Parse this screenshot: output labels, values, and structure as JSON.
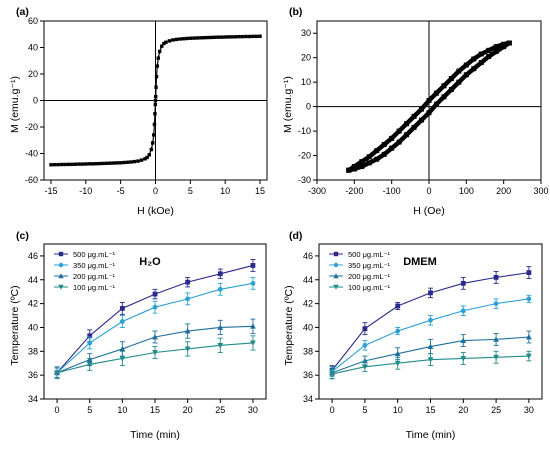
{
  "panels": [
    {
      "label": "(a)",
      "chart_data": {
        "type": "scatter",
        "xlabel": "H (kOe)",
        "ylabel": "M (emu.g⁻¹)",
        "xlim": [
          -16,
          16
        ],
        "ylim": [
          -60,
          60
        ],
        "xticks": [
          -15,
          -10,
          -5,
          0,
          5,
          10,
          15
        ],
        "yticks": [
          -60,
          -40,
          -20,
          0,
          20,
          40,
          60
        ],
        "zero_lines": true,
        "series": [
          {
            "color": "#000000",
            "marker": "square",
            "line": true,
            "x": [
              -15,
              -14.5,
              -14,
              -13.5,
              -13,
              -12.5,
              -12,
              -11.5,
              -11,
              -10.5,
              -10,
              -9.5,
              -9,
              -8.5,
              -8,
              -7.5,
              -7,
              -6.5,
              -6,
              -5.5,
              -5,
              -4.5,
              -4,
              -3.5,
              -3,
              -2.5,
              -2,
              -1.5,
              -1.2,
              -0.9,
              -0.6,
              -0.4,
              -0.25,
              -0.15,
              -0.08,
              -0.03,
              0,
              0.03,
              0.08,
              0.15,
              0.25,
              0.4,
              0.6,
              0.9,
              1.2,
              1.5,
              2,
              2.5,
              3,
              3.5,
              4,
              4.5,
              5,
              5.5,
              6,
              6.5,
              7,
              7.5,
              8,
              8.5,
              9,
              9.5,
              10,
              10.5,
              11,
              11.5,
              12,
              12.5,
              13,
              13.5,
              14,
              14.5,
              15
            ],
            "y": [
              -48.5,
              -48.4,
              -48.4,
              -48.3,
              -48.3,
              -48.2,
              -48.2,
              -48.1,
              -48,
              -48,
              -47.9,
              -47.8,
              -47.8,
              -47.7,
              -47.6,
              -47.5,
              -47.4,
              -47.3,
              -47.2,
              -47.1,
              -47,
              -46.8,
              -46.6,
              -46.4,
              -46.1,
              -45.7,
              -45,
              -44,
              -43,
              -41,
              -37,
              -32,
              -26,
              -18,
              -10,
              -3,
              0,
              3,
              10,
              18,
              26,
              32,
              37,
              41,
              43,
              44,
              45,
              45.7,
              46.1,
              46.4,
              46.6,
              46.8,
              47,
              47.1,
              47.2,
              47.3,
              47.4,
              47.5,
              47.6,
              47.7,
              47.8,
              47.8,
              47.9,
              48,
              48,
              48.1,
              48.2,
              48.2,
              48.3,
              48.3,
              48.4,
              48.4,
              48.5
            ]
          }
        ]
      }
    },
    {
      "label": "(b)",
      "chart_data": {
        "type": "line",
        "xlabel": "H (Oe)",
        "ylabel": "M (emu.g⁻¹)",
        "xlim": [
          -300,
          300
        ],
        "ylim": [
          -30,
          35
        ],
        "xticks": [
          -300,
          -200,
          -100,
          0,
          100,
          200,
          300
        ],
        "yticks": [
          -30,
          -20,
          -10,
          0,
          10,
          20,
          30
        ],
        "zero_lines": true,
        "series": [
          {
            "name": "",
            "color": "#000000",
            "dense_markers": true,
            "x": [
              215,
              200,
              180,
              160,
              140,
              120,
              100,
              80,
              60,
              40,
              20,
              0,
              -20,
              -40,
              -60,
              -80,
              -100,
              -120,
              -140,
              -160,
              -180,
              -200,
              -215
            ],
            "y": [
              26,
              25.5,
              24.5,
              23,
              21.5,
              19.5,
              17,
              14.5,
              11.5,
              8.5,
              5.5,
              2.5,
              -1,
              -4,
              -7,
              -10,
              -13,
              -15.5,
              -18,
              -20.5,
              -22.5,
              -24.5,
              -26
            ]
          },
          {
            "name": "",
            "color": "#000000",
            "dense_markers": true,
            "x": [
              -215,
              -200,
              -180,
              -160,
              -140,
              -120,
              -100,
              -80,
              -60,
              -40,
              -20,
              0,
              20,
              40,
              60,
              80,
              100,
              120,
              140,
              160,
              180,
              200,
              215
            ],
            "y": [
              -26,
              -25.5,
              -24.5,
              -23,
              -21.5,
              -19.5,
              -17,
              -14.5,
              -11.5,
              -8.5,
              -5.5,
              -2.5,
              1,
              4,
              7,
              10,
              13,
              15.5,
              18,
              20.5,
              22.5,
              24.5,
              26
            ]
          }
        ]
      }
    },
    {
      "label": "(c)",
      "medium": "H₂O",
      "chart_data": {
        "type": "line",
        "xlabel": "Time (min)",
        "ylabel": "Temperature (ºC)",
        "xlim": [
          -2,
          32
        ],
        "ylim": [
          34,
          47
        ],
        "xticks": [
          0,
          5,
          10,
          15,
          20,
          25,
          30
        ],
        "yticks": [
          34,
          36,
          38,
          40,
          42,
          44,
          46
        ],
        "legend": "top-left",
        "x": [
          0,
          5,
          10,
          15,
          20,
          25,
          30
        ],
        "series": [
          {
            "name": "500 μg.mL⁻¹",
            "color": "#2a2a8c",
            "marker": "square",
            "values": [
              36.2,
              39.3,
              41.6,
              42.8,
              43.8,
              44.5,
              45.2
            ],
            "err": [
              0.4,
              0.5,
              0.5,
              0.4,
              0.4,
              0.4,
              0.5
            ]
          },
          {
            "name": "350 μg.mL⁻¹",
            "color": "#2ba1d6",
            "marker": "circle",
            "values": [
              36.2,
              38.7,
              40.5,
              41.7,
              42.4,
              43.2,
              43.7
            ],
            "err": [
              0.4,
              0.5,
              0.5,
              0.5,
              0.5,
              0.5,
              0.5
            ]
          },
          {
            "name": "200 μg.mL⁻¹",
            "color": "#1f6f9c",
            "marker": "triangle-up",
            "values": [
              36.2,
              37.3,
              38.2,
              39.2,
              39.7,
              40.0,
              40.1
            ],
            "err": [
              0.5,
              0.5,
              0.6,
              0.5,
              0.6,
              0.6,
              0.6
            ]
          },
          {
            "name": "100 μg.mL⁻¹",
            "color": "#228b8b",
            "marker": "triangle-down",
            "values": [
              36.2,
              36.9,
              37.4,
              37.9,
              38.2,
              38.5,
              38.7
            ],
            "err": [
              0.4,
              0.5,
              0.6,
              0.5,
              0.6,
              0.6,
              0.6
            ]
          }
        ]
      }
    },
    {
      "label": "(d)",
      "medium": "DMEM",
      "chart_data": {
        "type": "line",
        "xlabel": "Time (min)",
        "ylabel": "Temperature (ºC)",
        "xlim": [
          -2,
          32
        ],
        "ylim": [
          34,
          47
        ],
        "xticks": [
          0,
          5,
          10,
          15,
          20,
          25,
          30
        ],
        "yticks": [
          34,
          36,
          38,
          40,
          42,
          44,
          46
        ],
        "legend": "top-left",
        "x": [
          0,
          5,
          10,
          15,
          20,
          25,
          30
        ],
        "series": [
          {
            "name": "500 μg.mL⁻¹",
            "color": "#2a2a8c",
            "marker": "square",
            "values": [
              36.4,
              39.9,
              41.8,
              42.9,
              43.7,
              44.2,
              44.6
            ],
            "err": [
              0.4,
              0.5,
              0.3,
              0.4,
              0.5,
              0.5,
              0.5
            ]
          },
          {
            "name": "350 μg.mL⁻¹",
            "color": "#2ba1d6",
            "marker": "circle",
            "values": [
              36.3,
              38.5,
              39.7,
              40.6,
              41.4,
              42.0,
              42.4
            ],
            "err": [
              0.4,
              0.4,
              0.3,
              0.4,
              0.4,
              0.4,
              0.3
            ]
          },
          {
            "name": "200 μg.mL⁻¹",
            "color": "#1f6f9c",
            "marker": "triangle-up",
            "values": [
              36.2,
              37.2,
              37.8,
              38.4,
              38.9,
              39.0,
              39.2
            ],
            "err": [
              0.5,
              0.4,
              0.5,
              0.6,
              0.5,
              0.5,
              0.5
            ]
          },
          {
            "name": "100 μg.mL⁻¹",
            "color": "#228b8b",
            "marker": "triangle-down",
            "values": [
              36.1,
              36.7,
              37.0,
              37.3,
              37.4,
              37.5,
              37.6
            ],
            "err": [
              0.4,
              0.4,
              0.5,
              0.5,
              0.5,
              0.5,
              0.4
            ]
          }
        ]
      }
    }
  ]
}
